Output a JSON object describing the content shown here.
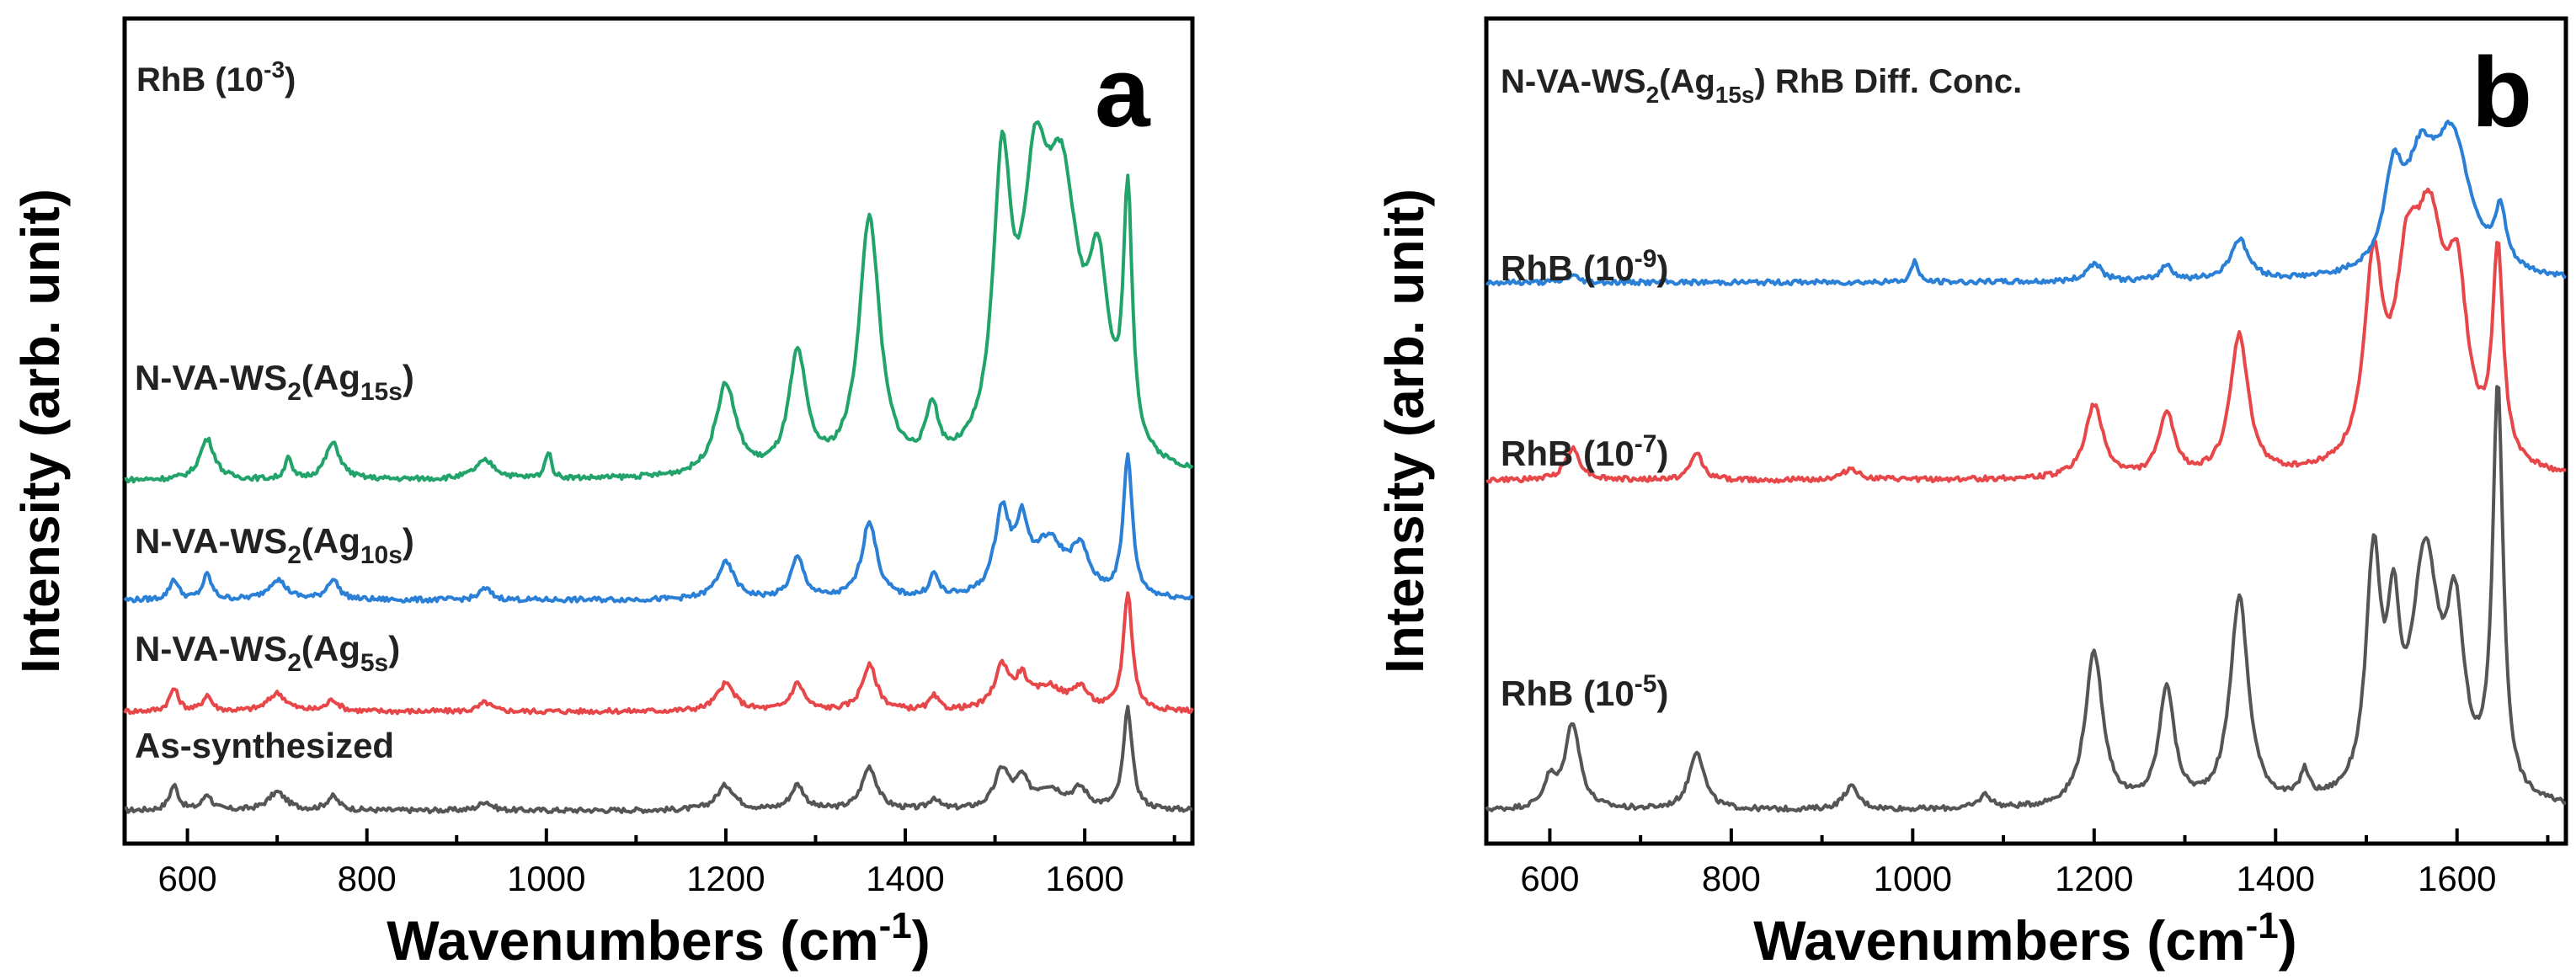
{
  "chart_data": [
    {
      "panel": "a",
      "type": "line",
      "title": "RhB (10-3)",
      "title_text": "RhB (10",
      "title_exp": "-3",
      "title_close": ")",
      "xlabel_text": "Wavenumbers (cm",
      "xlabel_exp": "-1",
      "xlabel_close": ")",
      "ylabel": "Intensity (arb. unit)",
      "xlim": [
        530,
        1720
      ],
      "xticks": [
        600,
        800,
        1000,
        1200,
        1400,
        1600
      ],
      "yticks_shown": false,
      "series": [
        {
          "name": "As-synthesized",
          "label_main": "As-synthesized",
          "label_sub": "",
          "color": "#555555",
          "baseline": 0.04,
          "scale": 0.055,
          "peaks": [
            [
              585,
              0.55,
              6
            ],
            [
              622,
              0.35,
              6
            ],
            [
              700,
              0.4,
              12
            ],
            [
              762,
              0.3,
              8
            ],
            [
              932,
              0.2,
              8
            ],
            [
              1200,
              0.55,
              12
            ],
            [
              1280,
              0.55,
              9
            ],
            [
              1360,
              0.95,
              10
            ],
            [
              1432,
              0.25,
              6
            ],
            [
              1508,
              0.85,
              10
            ],
            [
              1530,
              0.55,
              8
            ],
            [
              1560,
              0.45,
              20
            ],
            [
              1595,
              0.4,
              10
            ],
            [
              1648,
              2.2,
              6
            ]
          ]
        },
        {
          "name": "N-VA-WS2(Ag5s)",
          "label_main": "N-VA-WS",
          "label_sub": "2",
          "label_paren": "(Ag",
          "label_sub2": "5s",
          "label_close": ")",
          "color": "#e8474a",
          "baseline": 0.16,
          "scale": 0.055,
          "peaks": [
            [
              585,
              0.5,
              6
            ],
            [
              622,
              0.35,
              6
            ],
            [
              700,
              0.4,
              12
            ],
            [
              762,
              0.25,
              8
            ],
            [
              932,
              0.2,
              8
            ],
            [
              1200,
              0.6,
              12
            ],
            [
              1280,
              0.6,
              9
            ],
            [
              1360,
              1.0,
              10
            ],
            [
              1432,
              0.3,
              6
            ],
            [
              1508,
              0.95,
              10
            ],
            [
              1530,
              0.6,
              8
            ],
            [
              1560,
              0.5,
              20
            ],
            [
              1595,
              0.45,
              10
            ],
            [
              1648,
              2.6,
              6
            ]
          ]
        },
        {
          "name": "N-VA-WS2(Ag10s)",
          "label_main": "N-VA-WS",
          "label_sub": "2",
          "label_paren": "(Ag",
          "label_sub2": "10s",
          "label_close": ")",
          "color": "#2a7fd6",
          "baseline": 0.295,
          "scale": 0.055,
          "peaks": [
            [
              585,
              0.45,
              6
            ],
            [
              622,
              0.55,
              6
            ],
            [
              700,
              0.45,
              12
            ],
            [
              762,
              0.45,
              8
            ],
            [
              932,
              0.25,
              8
            ],
            [
              1200,
              0.8,
              12
            ],
            [
              1280,
              0.9,
              9
            ],
            [
              1360,
              1.7,
              10
            ],
            [
              1432,
              0.5,
              6
            ],
            [
              1508,
              1.8,
              10
            ],
            [
              1530,
              1.3,
              8
            ],
            [
              1560,
              1.2,
              22
            ],
            [
              1595,
              0.9,
              12
            ],
            [
              1648,
              3.1,
              6
            ]
          ]
        },
        {
          "name": "N-VA-WS2(Ag15s)",
          "label_main": "N-VA-WS",
          "label_sub": "2",
          "label_paren": "(Ag",
          "label_sub2": "15s",
          "label_close": ")",
          "color": "#22a36a",
          "baseline": 0.44,
          "scale": 0.055,
          "peaks": [
            [
              622,
              0.9,
              10
            ],
            [
              712,
              0.5,
              4
            ],
            [
              762,
              0.8,
              10
            ],
            [
              932,
              0.4,
              14
            ],
            [
              1002,
              0.6,
              4
            ],
            [
              1200,
              2.0,
              14
            ],
            [
              1280,
              2.6,
              12
            ],
            [
              1360,
              5.6,
              14
            ],
            [
              1430,
              1.2,
              8
            ],
            [
              1508,
              6.0,
              12
            ],
            [
              1545,
              5.2,
              18
            ],
            [
              1575,
              5.4,
              22
            ],
            [
              1615,
              3.6,
              14
            ],
            [
              1648,
              5.5,
              6
            ]
          ]
        }
      ]
    },
    {
      "panel": "b",
      "type": "line",
      "title_text": "N-VA-WS",
      "title_sub": "2",
      "title_paren": "(Ag",
      "title_sub2": "15s",
      "title_close": ") RhB Diff. Conc.",
      "xlabel_text": "Wavenumbers (cm",
      "xlabel_exp": "-1",
      "xlabel_close": ")",
      "ylabel": "Intensity (arb. unit)",
      "xlim": [
        530,
        1720
      ],
      "xticks": [
        600,
        800,
        1000,
        1200,
        1400,
        1600
      ],
      "yticks_shown": false,
      "series": [
        {
          "name": "RhB (10-5)",
          "label_text": "RhB (10",
          "label_exp": "-5",
          "label_close": ")",
          "color": "#555555",
          "baseline": 0.04,
          "scale": 0.055,
          "peaks": [
            [
              600,
              0.6,
              8
            ],
            [
              625,
              1.9,
              10
            ],
            [
              762,
              1.3,
              10
            ],
            [
              932,
              0.5,
              10
            ],
            [
              1080,
              0.3,
              8
            ],
            [
              1200,
              3.4,
              12
            ],
            [
              1280,
              2.6,
              10
            ],
            [
              1360,
              4.6,
              12
            ],
            [
              1432,
              0.6,
              6
            ],
            [
              1508,
              5.1,
              10
            ],
            [
              1530,
              3.2,
              8
            ],
            [
              1565,
              5.2,
              18
            ],
            [
              1598,
              3.6,
              12
            ],
            [
              1645,
              9.0,
              7
            ]
          ]
        },
        {
          "name": "RhB (10-7)",
          "label_text": "RhB (10",
          "label_exp": "-7",
          "label_close": ")",
          "color": "#e8474a",
          "baseline": 0.44,
          "scale": 0.055,
          "peaks": [
            [
              625,
              0.7,
              10
            ],
            [
              762,
              0.6,
              8
            ],
            [
              932,
              0.25,
              10
            ],
            [
              1200,
              1.6,
              12
            ],
            [
              1280,
              1.4,
              10
            ],
            [
              1360,
              3.1,
              12
            ],
            [
              1508,
              4.2,
              12
            ],
            [
              1545,
              3.4,
              16
            ],
            [
              1570,
              4.6,
              20
            ],
            [
              1600,
              3.4,
              14
            ],
            [
              1645,
              4.6,
              7
            ]
          ]
        },
        {
          "name": "RhB (10-9)",
          "label_text": "RhB (10",
          "label_exp": "-9",
          "label_close": ")",
          "color": "#2a7fd6",
          "baseline": 0.68,
          "scale": 0.055,
          "peaks": [
            [
              625,
              0.15,
              8
            ],
            [
              1002,
              0.5,
              4
            ],
            [
              1200,
              0.4,
              10
            ],
            [
              1280,
              0.35,
              8
            ],
            [
              1360,
              0.9,
              12
            ],
            [
              1530,
              1.9,
              12
            ],
            [
              1560,
              2.1,
              20
            ],
            [
              1595,
              2.9,
              24
            ],
            [
              1648,
              1.2,
              7
            ]
          ]
        }
      ]
    }
  ]
}
